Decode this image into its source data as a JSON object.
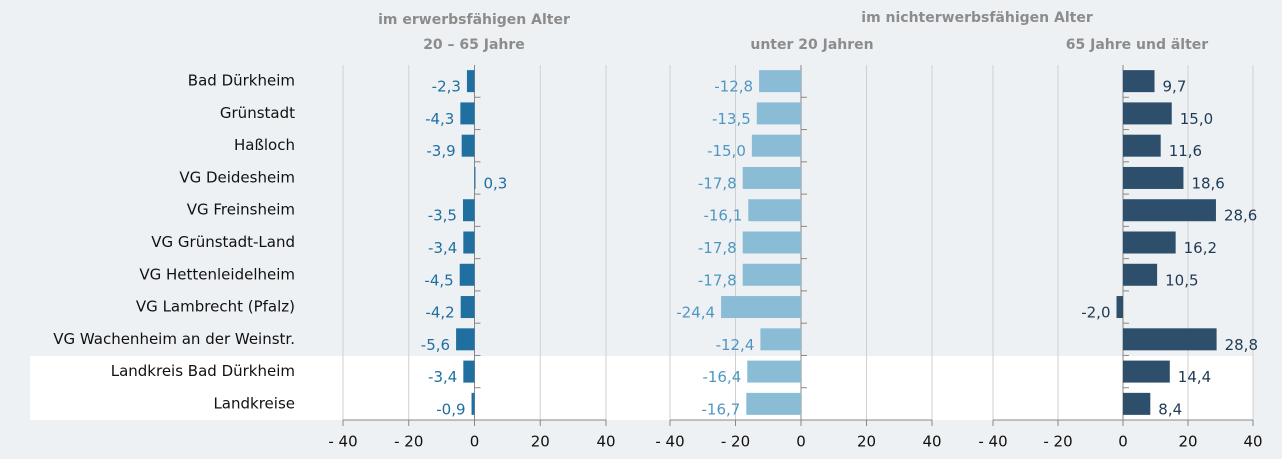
{
  "group_title": "im nichterwerbsfähigen Alter",
  "chart_data": [
    {
      "type": "hbar",
      "title": "im erwerbsfähigen Alter",
      "subtitle": "20 – 65 Jahre",
      "categories": [
        "Bad Dürkheim",
        "Grünstadt",
        "Haßloch",
        "VG Deidesheim",
        "VG Freinsheim",
        "VG Grünstadt-Land",
        "VG Hettenleidelheim",
        "VG Lambrecht (Pfalz)",
        "VG Wachenheim an der Weinstr.",
        "Landkreis Bad Dürkheim",
        "Landkreise"
      ],
      "values": [
        -2.3,
        -4.3,
        -3.9,
        0.3,
        -3.5,
        -3.4,
        -4.5,
        -4.2,
        -5.6,
        -3.4,
        -0.9
      ],
      "value_labels": [
        "-2,3",
        "-4,3",
        "-3,9",
        "0,3",
        "-3,5",
        "-3,4",
        "-4,5",
        "-4,2",
        "-5,6",
        "-3,4",
        "-0,9"
      ],
      "color": "#1f6fa0",
      "label_color": "#1f6fa0",
      "xlim": [
        -40,
        40
      ],
      "xticks": [
        {
          "value": -40,
          "label": "- 40"
        },
        {
          "value": -20,
          "label": "- 20"
        },
        0,
        20,
        40
      ],
      "grid": true
    },
    {
      "type": "hbar",
      "subtitle": "unter 20 Jahren",
      "values": [
        -12.8,
        -13.5,
        -15.0,
        -17.8,
        -16.1,
        -17.8,
        -17.8,
        -24.4,
        -12.4,
        -16.4,
        -16.7
      ],
      "value_labels": [
        "-12,8",
        "-13,5",
        "-15,0",
        "-17,8",
        "-16,1",
        "-17,8",
        "-17,8",
        "-24,4",
        "-12,4",
        "-16,4",
        "-16,7"
      ],
      "color": "#8bbcd6",
      "label_color": "#4f97c2",
      "xlim": [
        -40,
        40
      ],
      "xticks": [
        {
          "value": -40,
          "label": "- 40"
        },
        {
          "value": -20,
          "label": "- 20"
        },
        0,
        20,
        40
      ],
      "grid": true
    },
    {
      "type": "hbar",
      "subtitle": "65 Jahre und älter",
      "values": [
        9.7,
        15.0,
        11.6,
        18.6,
        28.6,
        16.2,
        10.5,
        -2.0,
        28.8,
        14.4,
        8.4
      ],
      "value_labels": [
        "9,7",
        "15,0",
        "11,6",
        "18,6",
        "28,6",
        "16,2",
        "10,5",
        "-2,0",
        "28,8",
        "14,4",
        "8,4"
      ],
      "color": "#2e4f6b",
      "label_color": "#1f3a55",
      "xlim": [
        -40,
        40
      ],
      "xticks": [
        {
          "value": -40,
          "label": "- 40"
        },
        {
          "value": -20,
          "label": "- 20"
        },
        0,
        20,
        40
      ],
      "grid": true
    }
  ]
}
